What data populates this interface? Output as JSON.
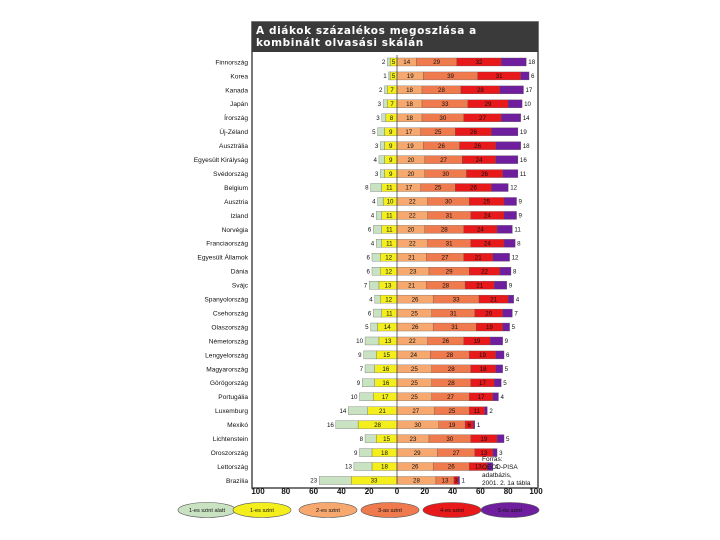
{
  "chart_data": {
    "type": "bar",
    "subtype": "diverging-stacked",
    "title": "A diákok százalékos megoszlása a kombinált olvasási skálán",
    "source": [
      "Forrás:",
      "OECD-PISA adatbázis,",
      "2001. 2. 1a tábla"
    ],
    "xlim": [
      -100,
      100
    ],
    "xticks": [
      "100",
      "80",
      "60",
      "40",
      "20",
      "0",
      "20",
      "40",
      "60",
      "80",
      "100"
    ],
    "levels": [
      {
        "name": "1-es szint alatt",
        "color": "#c9e2c2"
      },
      {
        "name": "1-es szint",
        "color": "#f4ef1c"
      },
      {
        "name": "2-es szint",
        "color": "#f6a86e"
      },
      {
        "name": "3-as szint",
        "color": "#ef7a4d"
      },
      {
        "name": "4-es szint",
        "color": "#e8191b"
      },
      {
        "name": "5-ös szint",
        "color": "#6f1f9e"
      }
    ],
    "countries": [
      {
        "name": "Finnország",
        "values": [
          2,
          5,
          14,
          29,
          32,
          18
        ]
      },
      {
        "name": "Korea",
        "values": [
          1,
          5,
          19,
          39,
          31,
          6
        ]
      },
      {
        "name": "Kanada",
        "values": [
          2,
          7,
          18,
          28,
          28,
          17
        ]
      },
      {
        "name": "Japán",
        "values": [
          3,
          7,
          18,
          33,
          29,
          10
        ]
      },
      {
        "name": "Írország",
        "values": [
          3,
          8,
          18,
          30,
          27,
          14
        ]
      },
      {
        "name": "Új-Zéland",
        "values": [
          5,
          9,
          17,
          25,
          26,
          19
        ]
      },
      {
        "name": "Ausztrália",
        "values": [
          3,
          9,
          19,
          26,
          26,
          18
        ]
      },
      {
        "name": "Egyesült Királyság",
        "values": [
          4,
          9,
          20,
          27,
          24,
          16
        ]
      },
      {
        "name": "Svédország",
        "values": [
          3,
          9,
          20,
          30,
          26,
          11
        ]
      },
      {
        "name": "Belgium",
        "values": [
          8,
          11,
          17,
          25,
          26,
          12
        ]
      },
      {
        "name": "Ausztria",
        "values": [
          4,
          10,
          22,
          30,
          25,
          9
        ]
      },
      {
        "name": "Izland",
        "values": [
          4,
          11,
          22,
          31,
          24,
          9
        ]
      },
      {
        "name": "Norvégia",
        "values": [
          6,
          11,
          20,
          28,
          24,
          11
        ]
      },
      {
        "name": "Franciaország",
        "values": [
          4,
          11,
          22,
          31,
          24,
          8
        ]
      },
      {
        "name": "Egyesült Államok",
        "values": [
          6,
          12,
          21,
          27,
          21,
          12
        ]
      },
      {
        "name": "Dánia",
        "values": [
          6,
          12,
          23,
          29,
          22,
          8
        ]
      },
      {
        "name": "Svájc",
        "values": [
          7,
          13,
          21,
          28,
          21,
          9
        ]
      },
      {
        "name": "Spanyolország",
        "values": [
          4,
          12,
          26,
          33,
          21,
          4
        ]
      },
      {
        "name": "Csehország",
        "values": [
          6,
          11,
          25,
          31,
          20,
          7
        ]
      },
      {
        "name": "Olaszország",
        "values": [
          5,
          14,
          26,
          31,
          19,
          5
        ]
      },
      {
        "name": "Németország",
        "values": [
          10,
          13,
          22,
          26,
          19,
          9
        ]
      },
      {
        "name": "Lengyelország",
        "values": [
          9,
          15,
          24,
          28,
          19,
          6
        ]
      },
      {
        "name": "Magyarország",
        "values": [
          7,
          16,
          25,
          28,
          18,
          5
        ]
      },
      {
        "name": "Görögország",
        "values": [
          9,
          16,
          25,
          28,
          17,
          5
        ]
      },
      {
        "name": "Portugália",
        "values": [
          10,
          17,
          25,
          27,
          17,
          4
        ]
      },
      {
        "name": "Luxemburg",
        "values": [
          14,
          21,
          27,
          25,
          11,
          2
        ]
      },
      {
        "name": "Mexikó",
        "values": [
          16,
          28,
          30,
          19,
          6,
          1
        ]
      },
      {
        "name": "Lichtenstein",
        "values": [
          8,
          15,
          23,
          30,
          19,
          5
        ]
      },
      {
        "name": "Oroszország",
        "values": [
          9,
          18,
          29,
          27,
          13,
          3
        ]
      },
      {
        "name": "Lettország",
        "values": [
          13,
          18,
          26,
          26,
          13,
          4
        ]
      },
      {
        "name": "Brazília",
        "values": [
          23,
          33,
          28,
          13,
          3,
          1
        ]
      }
    ]
  }
}
